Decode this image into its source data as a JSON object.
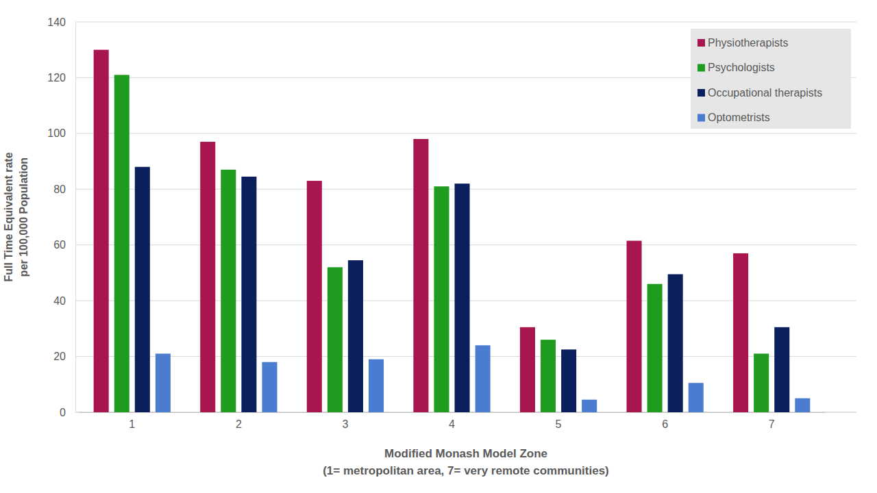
{
  "chart_data": {
    "type": "bar",
    "x_label": [
      "Modified Monash Model Zone",
      "(1= metropolitan area, 7= very remote communities)"
    ],
    "y_label": [
      "Full Time Equivalent rate",
      "per 100,000 Population"
    ],
    "categories": [
      "1",
      "2",
      "3",
      "4",
      "5",
      "6",
      "7"
    ],
    "series": [
      {
        "name": "Physiotherapists",
        "color": "#a8154f",
        "values": [
          130,
          97,
          83,
          98,
          30.5,
          61.5,
          57
        ]
      },
      {
        "name": "Psychologists",
        "color": "#1f9c1f",
        "values": [
          121,
          87,
          52,
          81,
          26,
          46,
          21
        ]
      },
      {
        "name": "Occupational therapists",
        "color": "#0b1f5c",
        "values": [
          88,
          84.5,
          54.5,
          82,
          22.5,
          49.5,
          30.5
        ]
      },
      {
        "name": "Optometrists",
        "color": "#4a7dd0",
        "values": [
          21,
          18,
          19,
          24,
          4.5,
          10.5,
          5
        ]
      }
    ],
    "ylim": [
      0,
      140
    ],
    "yticks": [
      0,
      20,
      40,
      60,
      80,
      100,
      120,
      140
    ],
    "grid": true,
    "legend": "top-right"
  }
}
